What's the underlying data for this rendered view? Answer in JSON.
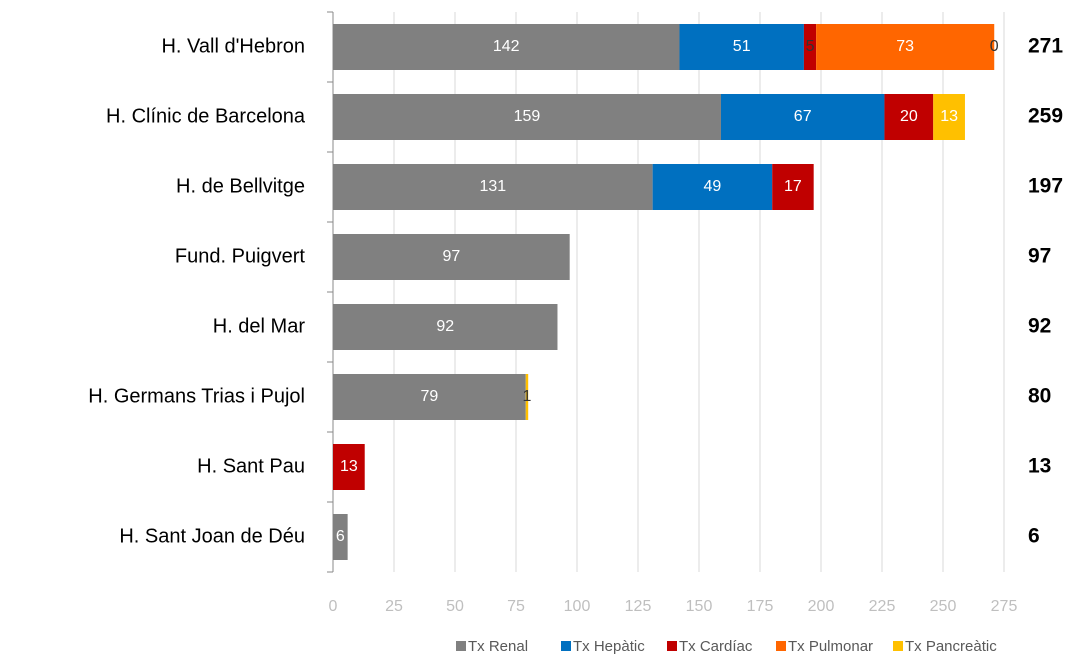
{
  "chart_data": {
    "type": "stacked-bar-horizontal",
    "categories": [
      "H. Vall d'Hebron",
      "H. Clínic de Barcelona",
      "H. de Bellvitge",
      "Fund. Puigvert",
      "H. del Mar",
      "H. Germans Trias i Pujol",
      "H. Sant Pau",
      "H. Sant Joan de Déu"
    ],
    "series": [
      {
        "name": "Tx Renal",
        "color": "#808080",
        "values": [
          142,
          159,
          131,
          97,
          92,
          79,
          null,
          6
        ]
      },
      {
        "name": "Tx Hepàtic",
        "color": "#0070c0",
        "values": [
          51,
          67,
          49,
          null,
          null,
          null,
          null,
          null
        ]
      },
      {
        "name": "Tx Cardíac",
        "color": "#c00000",
        "values": [
          5,
          20,
          17,
          null,
          null,
          null,
          13,
          null
        ]
      },
      {
        "name": "Tx Pulmonar",
        "color": "#ff6600",
        "values": [
          73,
          null,
          null,
          null,
          null,
          null,
          null,
          null
        ]
      },
      {
        "name": "Tx Pancreàtic",
        "color": "#ffc000",
        "values": [
          0,
          13,
          null,
          null,
          null,
          1,
          null,
          null
        ]
      }
    ],
    "totals": [
      271,
      259,
      197,
      97,
      92,
      80,
      13,
      6
    ],
    "xlim": [
      0,
      275
    ],
    "xticks": [
      0,
      25,
      50,
      75,
      100,
      125,
      150,
      175,
      200,
      225,
      250,
      275
    ],
    "grid": true,
    "legend": "bottom"
  }
}
